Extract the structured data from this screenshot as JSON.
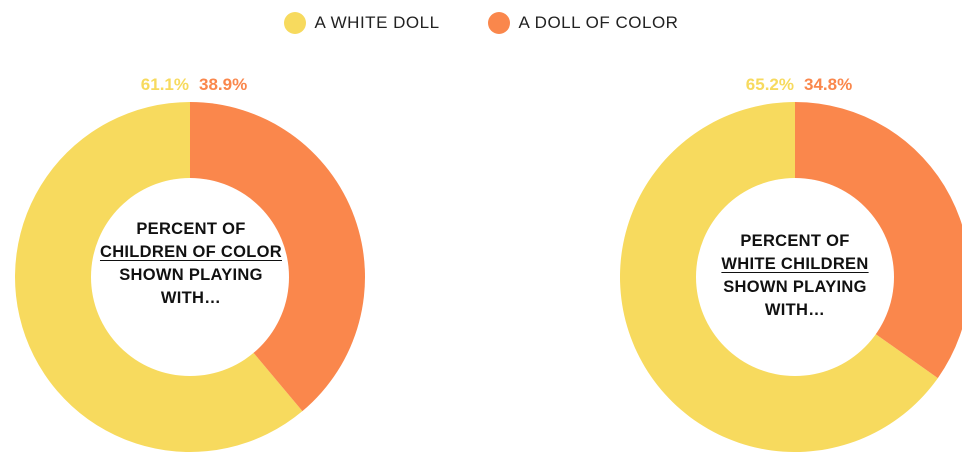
{
  "legend": {
    "items": [
      {
        "label": "A WHITE DOLL",
        "color": "#F7DA5E"
      },
      {
        "label": "A DOLL OF COLOR",
        "color": "#FA874C"
      }
    ]
  },
  "colors": {
    "white_doll": "#F7DA5E",
    "doll_of_color": "#FA874C"
  },
  "chart_data": [
    {
      "type": "pie",
      "labels": [
        "A WHITE DOLL",
        "A DOLL OF COLOR"
      ],
      "values": [
        61.1,
        38.9
      ],
      "value_labels": [
        "61.1%",
        "38.9%"
      ],
      "title_parts": {
        "pre": "PERCENT OF",
        "emph": "CHILDREN OF COLOR",
        "post": "SHOWN PLAYING WITH…"
      }
    },
    {
      "type": "pie",
      "labels": [
        "A WHITE DOLL",
        "A DOLL OF COLOR"
      ],
      "values": [
        65.2,
        34.8
      ],
      "value_labels": [
        "65.2%",
        "34.8%"
      ],
      "title_parts": {
        "pre": "PERCENT OF",
        "emph": "WHITE CHILDREN",
        "post": "SHOWN PLAYING WITH…"
      }
    }
  ]
}
